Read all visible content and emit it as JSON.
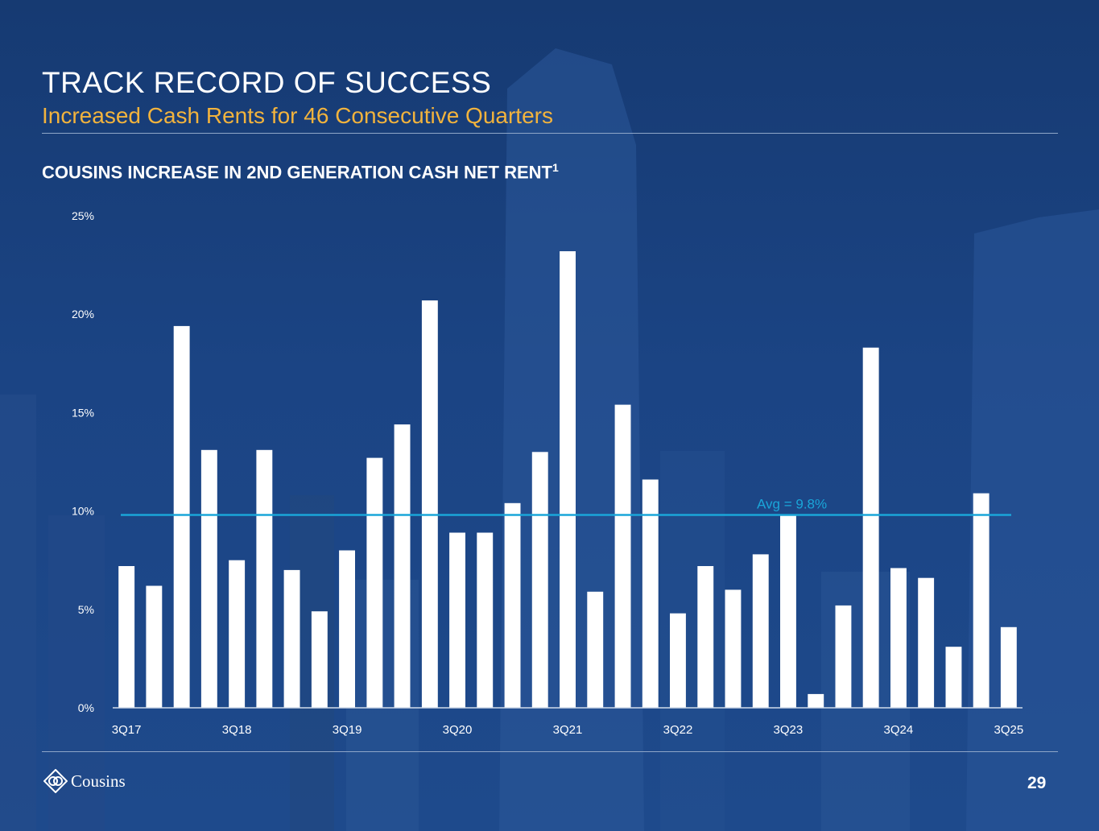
{
  "header": {
    "title": "TRACK RECORD OF SUCCESS",
    "subtitle": "Increased Cash Rents for 46 Consecutive Quarters"
  },
  "chart_section": {
    "title": "COUSINS INCREASE IN 2ND GENERATION CASH NET RENT",
    "footnote_marker": "1"
  },
  "chart_data": {
    "type": "bar",
    "title": "COUSINS INCREASE IN 2ND GENERATION CASH NET RENT",
    "xlabel": "",
    "ylabel": "",
    "ylim": [
      0,
      25
    ],
    "yticks": [
      "0%",
      "5%",
      "10%",
      "15%",
      "20%",
      "25%"
    ],
    "ytick_values": [
      0,
      5,
      10,
      15,
      20,
      25
    ],
    "xtick_labels": [
      "3Q17",
      "3Q18",
      "3Q19",
      "3Q20",
      "3Q21",
      "3Q22",
      "3Q23",
      "3Q24",
      "3Q25"
    ],
    "xtick_every": 4,
    "values": [
      7.2,
      6.2,
      19.4,
      13.1,
      7.5,
      13.1,
      7.0,
      4.9,
      8.0,
      12.7,
      14.4,
      20.7,
      8.9,
      8.9,
      10.4,
      13.0,
      23.2,
      5.9,
      15.4,
      11.6,
      4.8,
      7.2,
      6.0,
      7.8,
      9.8,
      0.7,
      5.2,
      18.3,
      7.1,
      6.6,
      3.1,
      10.9,
      4.1
    ],
    "average": 9.8,
    "average_label": "Avg = 9.8%",
    "grid": false,
    "colors": {
      "bars": "#ffffff",
      "average_line": "#1aa6d9",
      "axis_text": "#ffffff"
    }
  },
  "footer": {
    "logo_text": "Cousins",
    "page_number": "29"
  },
  "colors": {
    "background": "#1b4484",
    "accent": "#f2b33d"
  }
}
